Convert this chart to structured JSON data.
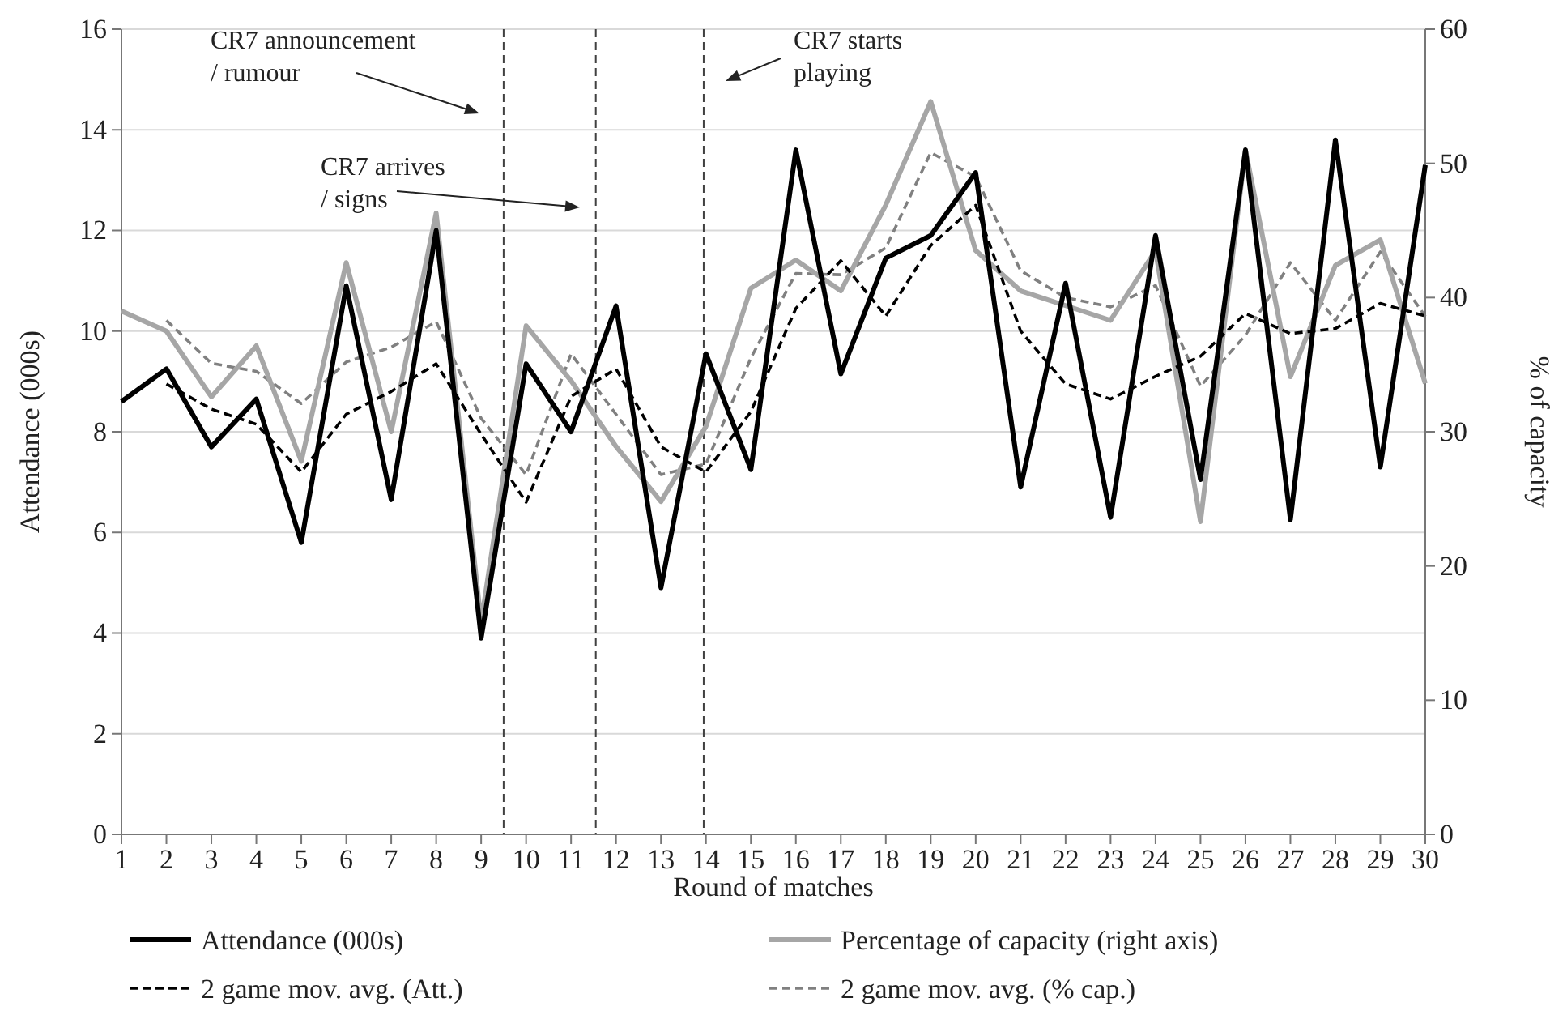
{
  "chart_data": {
    "type": "line",
    "xlabel": "Round of matches",
    "ylabel": "Attendance (000s)",
    "y2label": "% of capacity",
    "x": [
      1,
      2,
      3,
      4,
      5,
      6,
      7,
      8,
      9,
      10,
      11,
      12,
      13,
      14,
      15,
      16,
      17,
      18,
      19,
      20,
      21,
      22,
      23,
      24,
      25,
      26,
      27,
      28,
      29,
      30
    ],
    "xlim": [
      1,
      30
    ],
    "xticks": [
      1,
      2,
      3,
      4,
      5,
      6,
      7,
      8,
      9,
      10,
      11,
      12,
      13,
      14,
      15,
      16,
      17,
      18,
      19,
      20,
      21,
      22,
      23,
      24,
      25,
      26,
      27,
      28,
      29,
      30
    ],
    "ylim": [
      0,
      16
    ],
    "yticks": [
      0,
      2,
      4,
      6,
      8,
      10,
      12,
      14,
      16
    ],
    "y2lim": [
      0,
      60
    ],
    "y2ticks": [
      0,
      10,
      20,
      30,
      40,
      50,
      60
    ],
    "grid": "y",
    "legend": "bottom",
    "marker": "none",
    "series": [
      {
        "name": "Attendance (000s)",
        "color": "#000000",
        "line_style": "solid",
        "values": [
          8.6,
          9.25,
          7.7,
          8.65,
          5.8,
          10.9,
          6.65,
          12.0,
          3.9,
          9.35,
          8.0,
          10.5,
          4.9,
          9.55,
          7.25,
          13.6,
          9.15,
          11.45,
          11.9,
          13.15,
          6.9,
          10.95,
          6.3,
          11.9,
          7.05,
          13.6,
          6.25,
          13.8,
          7.3,
          13.3
        ]
      },
      {
        "name": "Percentage of capacity (right axis)",
        "color": "#a6a6a6",
        "axis": "y2",
        "line_style": "solid",
        "values": [
          39,
          37.5,
          32.6,
          36.4,
          27.8,
          42.6,
          30,
          46.3,
          15.8,
          37.9,
          33.8,
          28.9,
          24.8,
          30.4,
          40.7,
          42.8,
          40.5,
          46.9,
          54.6,
          43.5,
          40.5,
          39.4,
          38.3,
          43.5,
          23.3,
          51,
          34.1,
          42.4,
          44.3,
          33.6
        ]
      },
      {
        "name": "2 game mov. avg. (Att.)",
        "color": "#000000",
        "line_style": "dashed",
        "x": [
          2,
          3,
          4,
          5,
          6,
          7,
          8,
          9,
          10,
          11,
          12,
          13,
          14,
          15,
          16,
          17,
          18,
          19,
          20,
          21,
          22,
          23,
          24,
          25,
          26,
          27,
          28,
          29,
          30
        ],
        "values": [
          8.95,
          8.45,
          8.15,
          7.2,
          8.35,
          8.8,
          9.35,
          7.95,
          6.6,
          8.7,
          9.25,
          7.7,
          7.2,
          8.4,
          10.45,
          11.4,
          10.3,
          11.7,
          12.5,
          10.0,
          8.95,
          8.65,
          9.1,
          9.5,
          10.35,
          9.95,
          10.05,
          10.55,
          10.3
        ]
      },
      {
        "name": "2 game mov. avg. (% cap.)",
        "color": "#808080",
        "axis": "y2",
        "line_style": "dashed",
        "x": [
          2,
          3,
          4,
          5,
          6,
          7,
          8,
          9,
          10,
          11,
          12,
          13,
          14,
          15,
          16,
          17,
          18,
          19,
          20,
          21,
          22,
          23,
          24,
          25,
          26,
          27,
          28,
          29,
          30
        ],
        "values": [
          38.3,
          35.1,
          34.5,
          32.1,
          35.2,
          36.3,
          38.2,
          31.0,
          26.8,
          35.8,
          31.3,
          26.8,
          27.6,
          35.5,
          41.8,
          41.7,
          43.7,
          50.8,
          49.0,
          42.0,
          40.0,
          39.3,
          40.9,
          33.4,
          37.2,
          42.6,
          38.3,
          43.4,
          38.6
        ]
      }
    ],
    "ref_lines": [
      {
        "axis": "x",
        "value": 9.5,
        "color": "#404040",
        "line_style": "dashed"
      },
      {
        "axis": "x",
        "value": 11.55,
        "color": "#404040",
        "line_style": "dashed"
      },
      {
        "axis": "x",
        "value": 13.95,
        "color": "#404040",
        "line_style": "dashed"
      }
    ],
    "annotations": [
      "CR7 announcement\n/ rumour",
      "CR7 arrives\n/ signs",
      "CR7 starts\nplaying"
    ]
  }
}
